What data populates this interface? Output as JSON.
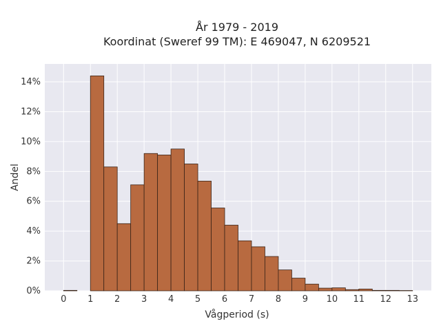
{
  "chart_data": {
    "type": "bar",
    "title_line1": "År 1979 - 2019",
    "title_line2": "Koordinat (Sweref 99 TM): E 469047, N 6209521",
    "xlabel": "Vågperiod (s)",
    "ylabel": "Andel",
    "xlim": [
      -0.7,
      13.7
    ],
    "ylim": [
      0,
      15.2
    ],
    "xticks": [
      0,
      1,
      2,
      3,
      4,
      5,
      6,
      7,
      8,
      9,
      10,
      11,
      12,
      13
    ],
    "yticks": [
      0,
      2,
      4,
      6,
      8,
      10,
      12,
      14
    ],
    "ytick_labels": [
      "0%",
      "2%",
      "4%",
      "6%",
      "8%",
      "10%",
      "12%",
      "14%"
    ],
    "bin_width": 0.5,
    "bin_starts": [
      0,
      0.5,
      1,
      1.5,
      2,
      2.5,
      3,
      3.5,
      4,
      4.5,
      5,
      5.5,
      6,
      6.5,
      7,
      7.5,
      8,
      8.5,
      9,
      9.5,
      10,
      10.5,
      11,
      11.5,
      12,
      12.5
    ],
    "values": [
      0.03,
      0.0,
      14.4,
      8.3,
      4.5,
      7.1,
      9.2,
      9.1,
      9.5,
      8.5,
      7.35,
      5.55,
      4.4,
      3.35,
      2.95,
      2.3,
      1.4,
      0.85,
      0.45,
      0.18,
      0.2,
      0.08,
      0.12,
      0.03,
      0.03,
      0.02
    ],
    "grid": true,
    "colors": {
      "bar_fill": "#b86a40",
      "bar_edge": "#3a2418",
      "plot_bg": "#e8e8f0",
      "grid": "#ffffff"
    }
  }
}
